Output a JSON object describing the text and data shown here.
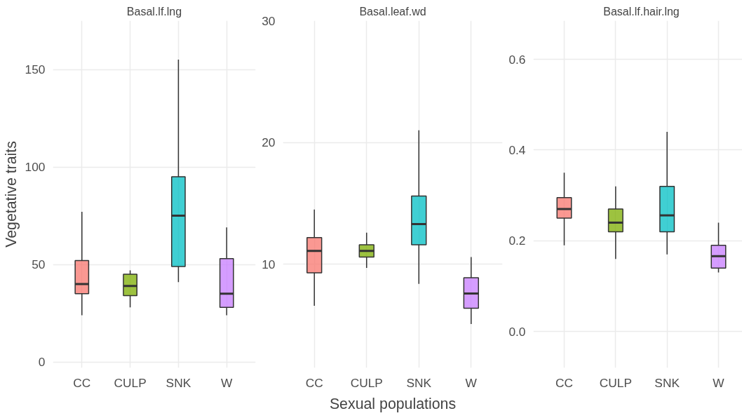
{
  "chart_data": [
    {
      "type": "box",
      "title": "Basal.lf.lng",
      "ylabel": "Vegetative traits",
      "categories": [
        "CC",
        "CULP",
        "SNK",
        "W"
      ],
      "colors": [
        "#f8766d",
        "#7cae00",
        "#00bfc4",
        "#c77cff"
      ],
      "grid": true,
      "ylim": [
        -3,
        175
      ],
      "yticks": [
        0,
        50,
        100,
        150
      ],
      "boxes": [
        {
          "low": 24,
          "q1": 35,
          "median": 40,
          "q3": 52,
          "high": 77
        },
        {
          "low": 28,
          "q1": 34,
          "median": 39,
          "q3": 45,
          "high": 47
        },
        {
          "low": 41,
          "q1": 49,
          "median": 75,
          "q3": 95,
          "high": 155
        },
        {
          "low": 24,
          "q1": 28,
          "median": 35,
          "q3": 53,
          "high": 69
        }
      ]
    },
    {
      "type": "box",
      "title": "Basal.leaf.wd",
      "xlabel": "Sexual populations",
      "categories": [
        "CC",
        "CULP",
        "SNK",
        "W"
      ],
      "colors": [
        "#f8766d",
        "#7cae00",
        "#00bfc4",
        "#c77cff"
      ],
      "grid": true,
      "ylim": [
        1.5,
        30
      ],
      "yticks": [
        10,
        20,
        30
      ],
      "boxes": [
        {
          "low": 6.6,
          "q1": 9.3,
          "median": 11.1,
          "q3": 12.2,
          "high": 14.5
        },
        {
          "low": 9.7,
          "q1": 10.6,
          "median": 11.1,
          "q3": 11.6,
          "high": 12.6
        },
        {
          "low": 8.4,
          "q1": 11.6,
          "median": 13.3,
          "q3": 15.6,
          "high": 21
        },
        {
          "low": 5.1,
          "q1": 6.4,
          "median": 7.6,
          "q3": 8.9,
          "high": 10.6
        }
      ]
    },
    {
      "type": "box",
      "title": "Basal.lf.hair.lng",
      "categories": [
        "CC",
        "CULP",
        "SNK",
        "W"
      ],
      "colors": [
        "#f8766d",
        "#7cae00",
        "#00bfc4",
        "#c77cff"
      ],
      "grid": true,
      "ylim": [
        -0.08,
        0.685
      ],
      "yticks": [
        {
          "value": 0,
          "label": "0.0"
        },
        0.2,
        0.4,
        0.6
      ],
      "boxes": [
        {
          "low": 0.19,
          "q1": 0.25,
          "median": 0.27,
          "q3": 0.295,
          "high": 0.35
        },
        {
          "low": 0.16,
          "q1": 0.22,
          "median": 0.24,
          "q3": 0.27,
          "high": 0.32
        },
        {
          "low": 0.17,
          "q1": 0.22,
          "median": 0.256,
          "q3": 0.32,
          "high": 0.44
        },
        {
          "low": 0.13,
          "q1": 0.14,
          "median": 0.166,
          "q3": 0.19,
          "high": 0.24
        }
      ]
    }
  ]
}
